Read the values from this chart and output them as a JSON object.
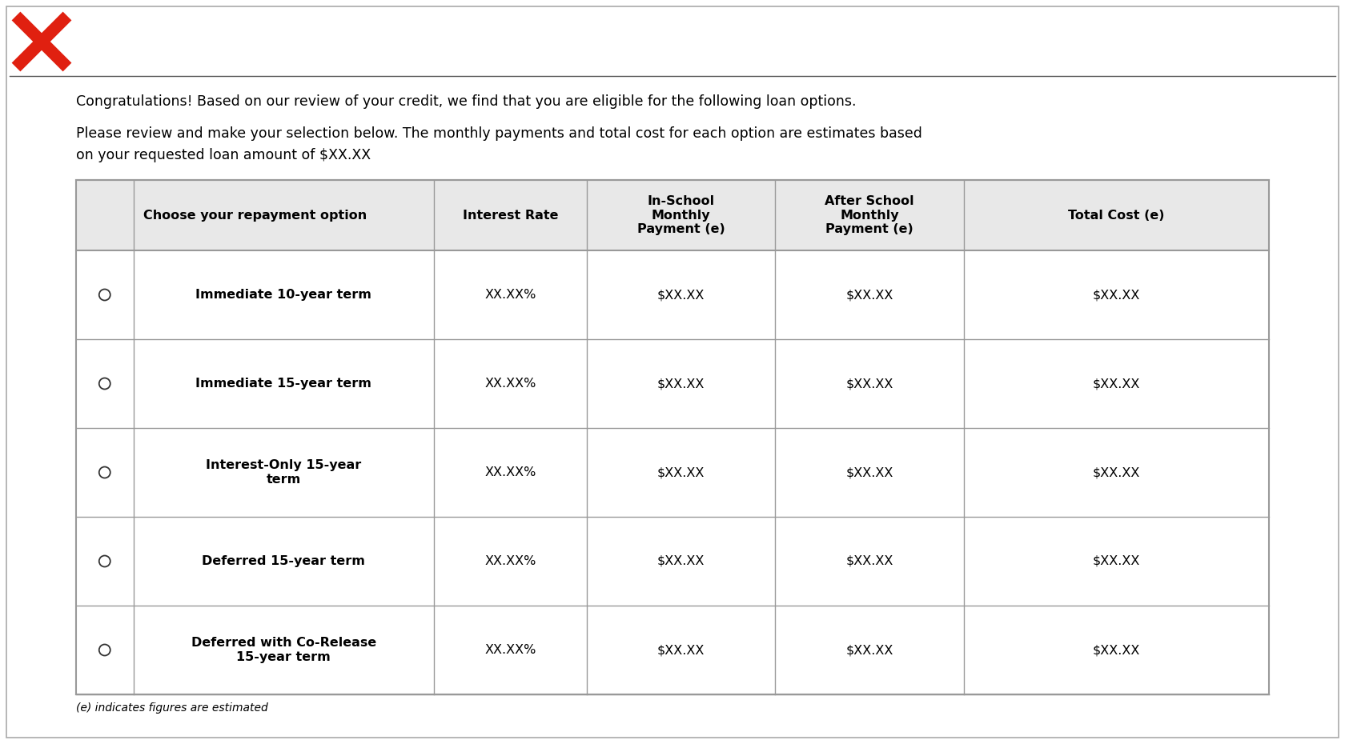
{
  "background_color": "#ffffff",
  "text_color": "#000000",
  "header_bg": "#e8e8e8",
  "line1": "Congratulations! Based on our review of your credit, we find that you are eligible for the following loan options.",
  "line2a": "Please review and make your selection below. The monthly payments and total cost for each option are estimates based",
  "line2b": "on your requested loan amount of $XX.XX",
  "footnote": "(e) indicates figures are estimated",
  "col_headers": [
    "Choose your repayment option",
    "Interest Rate",
    "In-School\nMonthly\nPayment (e)",
    "After School\nMonthly\nPayment (e)",
    "Total Cost (e)"
  ],
  "rows": [
    [
      "Immediate 10-year term",
      "XX.XX%",
      "$XX.XX",
      "$XX.XX",
      "$XX.XX"
    ],
    [
      "Immediate 15-year term",
      "XX.XX%",
      "$XX.XX",
      "$XX.XX",
      "$XX.XX"
    ],
    [
      "Interest-Only 15-year\nterm",
      "XX.XX%",
      "$XX.XX",
      "$XX.XX",
      "$XX.XX"
    ],
    [
      "Deferred 15-year term",
      "XX.XX%",
      "$XX.XX",
      "$XX.XX",
      "$XX.XX"
    ],
    [
      "Deferred with Co-Release\n15-year term",
      "XX.XX%",
      "$XX.XX",
      "$XX.XX",
      "$XX.XX"
    ]
  ],
  "red_x_color": "#e02010",
  "table_border": "#999999",
  "outer_border": "#aaaaaa",
  "rule_color": "#555555",
  "cell_text_fontsize": 11.5,
  "header_fontsize": 11.5,
  "body_text_fontsize": 12.5,
  "footnote_fontsize": 10,
  "fig_width": 16.8,
  "fig_height": 9.3,
  "dpi": 100
}
